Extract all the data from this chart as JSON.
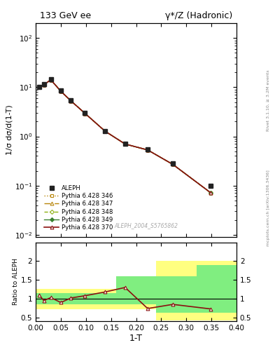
{
  "title_left": "133 GeV ee",
  "title_right": "γ*/Z (Hadronic)",
  "xlabel": "1-T",
  "ylabel_main": "1/σ dσ/d(1-T)",
  "ylabel_ratio": "Ratio to ALEPH",
  "right_label_top": "Rivet 3.1.10, ≥ 3.2M events",
  "right_label_bottom": "mcplots.cern.ch [arXiv:1306.3436]",
  "watermark": "ALEPH_2004_S5765862",
  "aleph_x": [
    0.007,
    0.016,
    0.03,
    0.05,
    0.07,
    0.098,
    0.138,
    0.178,
    0.223,
    0.273,
    0.348
  ],
  "aleph_y": [
    10.2,
    11.5,
    14.5,
    8.5,
    5.5,
    3.0,
    1.3,
    0.72,
    0.55,
    0.28,
    0.1
  ],
  "mc_x": [
    0.007,
    0.016,
    0.03,
    0.05,
    0.07,
    0.098,
    0.138,
    0.178,
    0.223,
    0.273,
    0.348
  ],
  "mc_y": [
    10.0,
    11.2,
    14.2,
    8.3,
    5.3,
    2.95,
    1.28,
    0.7,
    0.53,
    0.27,
    0.072
  ],
  "ratio_x": [
    0.007,
    0.016,
    0.03,
    0.05,
    0.07,
    0.098,
    0.138,
    0.178,
    0.223,
    0.273,
    0.348
  ],
  "ratio_y": [
    1.1,
    0.95,
    1.03,
    0.9,
    1.02,
    1.08,
    1.18,
    1.3,
    0.74,
    0.85,
    0.73
  ],
  "band_yellow_edges": [
    0.0,
    0.04,
    0.08,
    0.16,
    0.24,
    0.32,
    0.4
  ],
  "band_yellow_lo": [
    0.73,
    0.73,
    0.73,
    0.73,
    0.42,
    0.42,
    0.42
  ],
  "band_yellow_hi": [
    1.27,
    1.27,
    1.27,
    1.27,
    2.0,
    2.0,
    2.5
  ],
  "band_green_edges": [
    0.0,
    0.04,
    0.08,
    0.16,
    0.24,
    0.32,
    0.4
  ],
  "band_green_lo": [
    0.85,
    0.85,
    0.85,
    0.85,
    0.62,
    0.62,
    0.62
  ],
  "band_green_hi": [
    1.15,
    1.15,
    1.15,
    1.6,
    1.6,
    1.9,
    1.9
  ],
  "color_aleph": "#222222",
  "color_mc_346": "#b8860b",
  "color_mc_347": "#b8860b",
  "color_mc_348": "#8db010",
  "color_mc_349": "#3a8030",
  "color_mc_370": "#8b1010",
  "color_band_yellow": "#ffff80",
  "color_band_green": "#80ee80",
  "ylim_main": [
    0.009,
    200
  ],
  "ylim_ratio": [
    0.4,
    2.5
  ],
  "xlim": [
    0.0,
    0.4
  ]
}
